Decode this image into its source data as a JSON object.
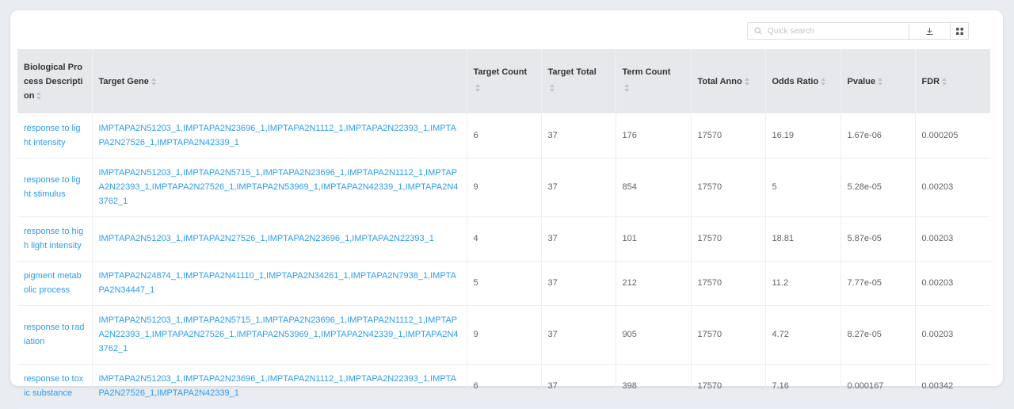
{
  "toolbar": {
    "search_placeholder": "Quick search",
    "download_icon": "download-icon",
    "grid_icon": "grid-icon"
  },
  "columns": [
    "Biological Process Description",
    "Target Gene",
    "Target Count",
    "Target Total",
    "Term Count",
    "Total Anno",
    "Odds Ratio",
    "Pvalue",
    "FDR"
  ],
  "rows": [
    [
      "response to light intensity",
      "IMPTAPA2N51203_1,IMPTAPA2N23696_1,IMPTAPA2N1112_1,IMPTAPA2N22393_1,IMPTAPA2N27526_1,IMPTAPA2N42339_1",
      "6",
      "37",
      "176",
      "17570",
      "16.19",
      "1.67e-06",
      "0.000205"
    ],
    [
      "response to light stimulus",
      "IMPTAPA2N51203_1,IMPTAPA2N5715_1,IMPTAPA2N23696_1,IMPTAPA2N1112_1,IMPTAPA2N22393_1,IMPTAPA2N27526_1,IMPTAPA2N53969_1,IMPTAPA2N42339_1,IMPTAPA2N43762_1",
      "9",
      "37",
      "854",
      "17570",
      "5",
      "5.28e-05",
      "0.00203"
    ],
    [
      "response to high light intensity",
      "IMPTAPA2N51203_1,IMPTAPA2N27526_1,IMPTAPA2N23696_1,IMPTAPA2N22393_1",
      "4",
      "37",
      "101",
      "17570",
      "18.81",
      "5.87e-05",
      "0.00203"
    ],
    [
      "pigment metabolic process",
      "IMPTAPA2N24874_1,IMPTAPA2N41110_1,IMPTAPA2N34261_1,IMPTAPA2N7938_1,IMPTAPA2N34447_1",
      "5",
      "37",
      "212",
      "17570",
      "11.2",
      "7.77e-05",
      "0.00203"
    ],
    [
      "response to radiation",
      "IMPTAPA2N51203_1,IMPTAPA2N5715_1,IMPTAPA2N23696_1,IMPTAPA2N1112_1,IMPTAPA2N22393_1,IMPTAPA2N27526_1,IMPTAPA2N53969_1,IMPTAPA2N42339_1,IMPTAPA2N43762_1",
      "9",
      "37",
      "905",
      "17570",
      "4.72",
      "8.27e-05",
      "0.00203"
    ],
    [
      "response to toxic substance",
      "IMPTAPA2N51203_1,IMPTAPA2N23696_1,IMPTAPA2N1112_1,IMPTAPA2N22393_1,IMPTAPA2N27526_1,IMPTAPA2N42339_1",
      "6",
      "37",
      "398",
      "17570",
      "7.16",
      "0.000167",
      "0.00342"
    ]
  ]
}
